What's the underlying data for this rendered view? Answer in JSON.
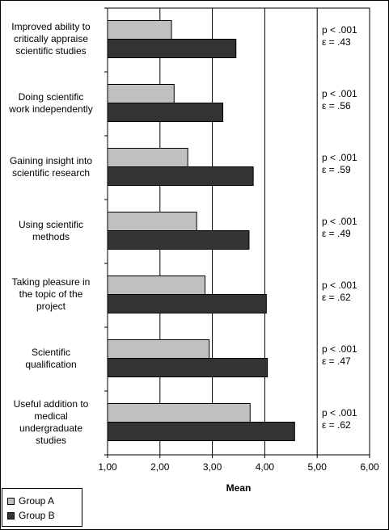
{
  "chart_data": {
    "type": "bar",
    "orientation": "horizontal",
    "categories": [
      "Improved ability to critically appraise scientific studies",
      "Doing scientific work independently",
      "Gaining insight into scientific research",
      "Using scientific methods",
      "Taking pleasure in the topic of the project",
      "Scientific qualification",
      "Useful addition to medical undergraduate studies"
    ],
    "series": [
      {
        "name": "Group A",
        "color": "#c0c0c0",
        "values": [
          2.22,
          2.27,
          2.53,
          2.7,
          2.86,
          2.94,
          3.72
        ]
      },
      {
        "name": "Group B",
        "color": "#333333",
        "values": [
          3.45,
          3.2,
          3.78,
          3.7,
          4.03,
          4.05,
          4.57
        ]
      }
    ],
    "annotations": [
      {
        "p": "p < .001",
        "effect": "ε = .43"
      },
      {
        "p": "p < .001",
        "effect": "ε = .56"
      },
      {
        "p": "p < .001",
        "effect": "ε = .59"
      },
      {
        "p": "p < .001",
        "effect": "ε = .49"
      },
      {
        "p": "p < .001",
        "effect": "ε = .62"
      },
      {
        "p": "p < .001",
        "effect": "ε = .47"
      },
      {
        "p": "p < .001",
        "effect": "ε = .62"
      }
    ],
    "xlabel": "Mean",
    "xlim": [
      1,
      6
    ],
    "xticks": [
      "1,00",
      "2,00",
      "3,00",
      "4,00",
      "5,00",
      "6,00"
    ],
    "grid": "vertical major lines",
    "legend_position": "bottom-left"
  }
}
